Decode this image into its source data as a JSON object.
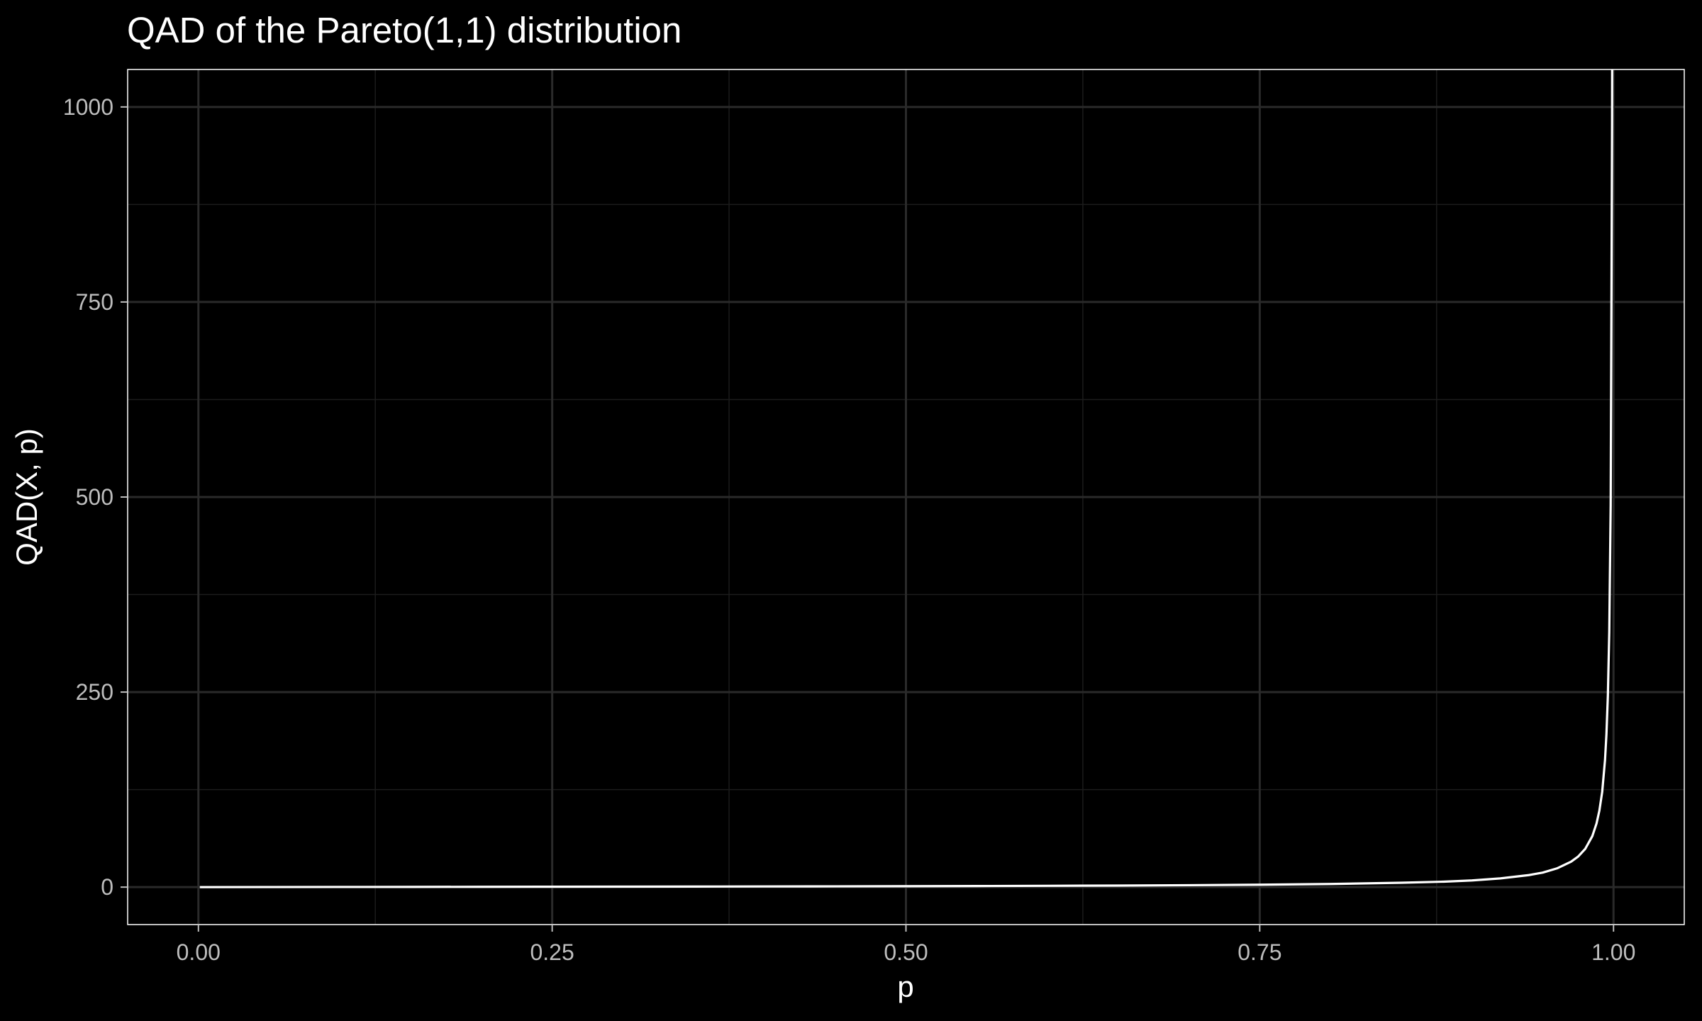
{
  "chart_data": {
    "type": "line",
    "title": "QAD of the Pareto(1,1) distribution",
    "xlabel": "p",
    "ylabel": "QAD(X, p)",
    "xlim": [
      -0.05,
      1.05
    ],
    "ylim": [
      -48,
      1048
    ],
    "xticks": [
      0,
      0.25,
      0.5,
      0.75,
      1
    ],
    "xtick_labels": [
      "0.00",
      "0.25",
      "0.50",
      "0.75",
      "1.00"
    ],
    "yticks": [
      0,
      250,
      500,
      750,
      1000
    ],
    "ytick_labels": [
      "0",
      "250",
      "500",
      "750",
      "1000"
    ],
    "grid": true,
    "legend": "none",
    "series": [
      {
        "color": "#ffffff",
        "x": [
          0.001,
          0.05,
          0.1,
          0.15,
          0.2,
          0.25,
          0.3,
          0.35,
          0.4,
          0.45,
          0.5,
          0.55,
          0.6,
          0.65,
          0.7,
          0.75,
          0.8,
          0.85,
          0.88,
          0.9,
          0.92,
          0.94,
          0.95,
          0.96,
          0.97,
          0.975,
          0.98,
          0.985,
          0.988,
          0.99,
          0.992,
          0.994,
          0.995,
          0.996,
          0.997,
          0.998,
          0.999,
          0.99905
        ],
        "y": [
          0.0,
          0.1,
          0.2,
          0.3,
          0.4,
          0.5,
          0.6,
          0.7,
          0.9,
          1.0,
          1.2,
          1.4,
          1.7,
          2.0,
          2.5,
          3.1,
          4.0,
          5.6,
          7.0,
          8.6,
          11.2,
          15.4,
          18.6,
          24.0,
          32.6,
          39.2,
          49.0,
          65.3,
          81.6,
          98.0,
          122.0,
          163.0,
          196.0,
          245.0,
          327.0,
          490.0,
          980.0,
          1048.0
        ]
      }
    ]
  }
}
